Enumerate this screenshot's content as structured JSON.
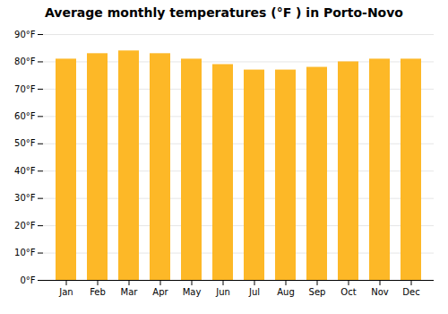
{
  "chart_data": {
    "type": "bar",
    "title": "Average monthly temperatures (°F ) in Porto-Novo",
    "categories": [
      "Jan",
      "Feb",
      "Mar",
      "Apr",
      "May",
      "Jun",
      "Jul",
      "Aug",
      "Sep",
      "Oct",
      "Nov",
      "Dec"
    ],
    "values": [
      81,
      83,
      84,
      83,
      81,
      79,
      77,
      77,
      78,
      80,
      81,
      81
    ],
    "color": "#FDB827",
    "ylim": [
      0,
      90
    ],
    "yticks": [
      {
        "value": 0,
        "label": "0°F"
      },
      {
        "value": 10,
        "label": "10°F"
      },
      {
        "value": 20,
        "label": "20°F"
      },
      {
        "value": 30,
        "label": "30°F"
      },
      {
        "value": 40,
        "label": "40°F"
      },
      {
        "value": 50,
        "label": "50°F"
      },
      {
        "value": 60,
        "label": "60°F"
      },
      {
        "value": 70,
        "label": "70°F"
      },
      {
        "value": 80,
        "label": "80°F"
      },
      {
        "value": 90,
        "label": "90°F"
      }
    ],
    "grid": true
  }
}
